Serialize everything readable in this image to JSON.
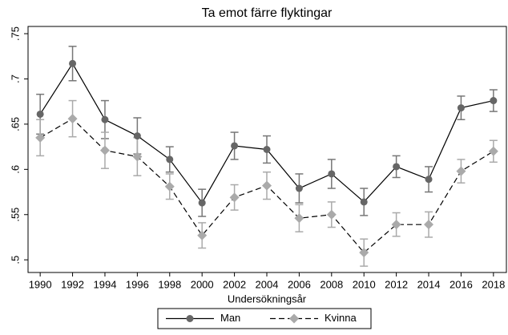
{
  "chart_data": {
    "type": "line",
    "title": "Ta emot färre flyktingar",
    "x_label": "Undersökningsår",
    "x": [
      1990,
      1992,
      1994,
      1996,
      1998,
      2000,
      2002,
      2004,
      2006,
      2008,
      2010,
      2012,
      2014,
      2016,
      2018
    ],
    "xlim": [
      1989.25,
      2018.8
    ],
    "xticks": [
      1990,
      1992,
      1994,
      1996,
      1998,
      2000,
      2002,
      2004,
      2006,
      2008,
      2010,
      2012,
      2014,
      2016,
      2018
    ],
    "ylim": [
      0.486,
      0.758
    ],
    "yticks": [
      {
        "value": 0.5,
        "label": ".5"
      },
      {
        "value": 0.55,
        "label": ".55"
      },
      {
        "value": 0.6,
        "label": ".6"
      },
      {
        "value": 0.65,
        "label": ".65"
      },
      {
        "value": 0.7,
        "label": ".7"
      },
      {
        "value": 0.75,
        "label": ".75"
      }
    ],
    "legend": "bottom",
    "series": [
      {
        "name": "Man",
        "color": "#666666",
        "line_color": "#000000",
        "error_color": "#777777",
        "line_style": "solid",
        "marker": "circle",
        "values": [
          0.661,
          0.717,
          0.655,
          0.637,
          0.611,
          0.563,
          0.626,
          0.622,
          0.579,
          0.595,
          0.564,
          0.603,
          0.589,
          0.668,
          0.676
        ],
        "errors": [
          0.022,
          0.019,
          0.021,
          0.02,
          0.014,
          0.015,
          0.015,
          0.015,
          0.016,
          0.016,
          0.015,
          0.012,
          0.014,
          0.013,
          0.012
        ]
      },
      {
        "name": "Kvinna",
        "color": "#aaaaaa",
        "line_color": "#000000",
        "error_color": "#aaaaaa",
        "line_style": "dashed",
        "marker": "diamond",
        "values": [
          0.635,
          0.656,
          0.621,
          0.614,
          0.581,
          0.527,
          0.569,
          0.582,
          0.546,
          0.55,
          0.508,
          0.539,
          0.539,
          0.598,
          0.62
        ],
        "errors": [
          0.02,
          0.02,
          0.02,
          0.021,
          0.014,
          0.014,
          0.014,
          0.015,
          0.015,
          0.014,
          0.015,
          0.013,
          0.014,
          0.013,
          0.012
        ]
      }
    ]
  }
}
